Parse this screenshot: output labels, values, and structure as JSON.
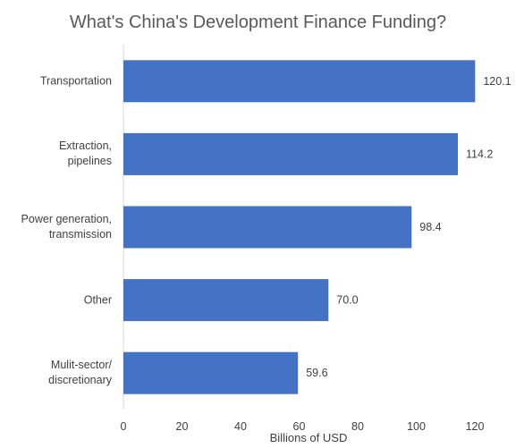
{
  "chart_data": {
    "type": "bar",
    "orientation": "horizontal",
    "title": "What's China's Development Finance Funding?",
    "xlabel": "Billions of USD",
    "ylabel": "",
    "categories": [
      "Transportation",
      "Extraction,\npipelines",
      "Power generation,\ntransmission",
      "Other",
      "Mulit-sector/\ndiscretionary"
    ],
    "values": [
      120.1,
      114.2,
      98.4,
      70.0,
      59.6
    ],
    "value_labels": [
      "120.1",
      "114.2",
      "98.4",
      "70.0",
      "59.6"
    ],
    "xlim": [
      0,
      120
    ],
    "xticks": [
      "0",
      "20",
      "40",
      "60",
      "80",
      "100",
      "120"
    ],
    "grid": false,
    "legend": "none",
    "bar_color": "#4472C4"
  }
}
